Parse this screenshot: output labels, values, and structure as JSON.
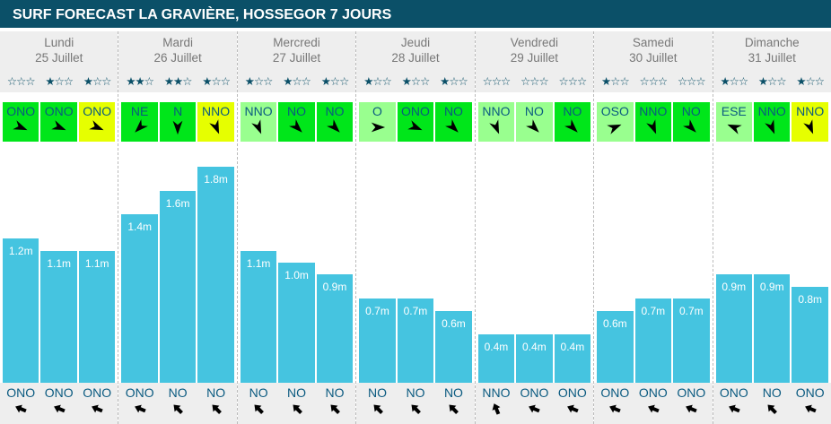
{
  "title": "SURF FORECAST LA GRAVIÈRE, HOSSEGOR 7 JOURS",
  "colors": {
    "strong": "#00e61a",
    "light": "#99ff8f",
    "yellow": "#e6ff00",
    "bar": "#45c4e0"
  },
  "days": [
    {
      "name": "Lundi",
      "date": "25 Juillet",
      "slots": [
        {
          "stars": 0,
          "wind": "ONO",
          "wind_color": "strong",
          "height": 1.2,
          "height_label": "1.2m",
          "swell": "ONO"
        },
        {
          "stars": 1,
          "wind": "ONO",
          "wind_color": "strong",
          "height": 1.1,
          "height_label": "1.1m",
          "swell": "ONO"
        },
        {
          "stars": 1,
          "wind": "ONO",
          "wind_color": "yellow",
          "height": 1.1,
          "height_label": "1.1m",
          "swell": "ONO"
        }
      ]
    },
    {
      "name": "Mardi",
      "date": "26 Juillet",
      "slots": [
        {
          "stars": 2,
          "wind": "NE",
          "wind_color": "strong",
          "height": 1.4,
          "height_label": "1.4m",
          "swell": "ONO"
        },
        {
          "stars": 2,
          "wind": "N",
          "wind_color": "strong",
          "height": 1.6,
          "height_label": "1.6m",
          "swell": "NO"
        },
        {
          "stars": 1,
          "wind": "NNO",
          "wind_color": "yellow",
          "height": 1.8,
          "height_label": "1.8m",
          "swell": "NO"
        }
      ]
    },
    {
      "name": "Mercredi",
      "date": "27 Juillet",
      "slots": [
        {
          "stars": 1,
          "wind": "NNO",
          "wind_color": "light",
          "height": 1.1,
          "height_label": "1.1m",
          "swell": "NO"
        },
        {
          "stars": 1,
          "wind": "NO",
          "wind_color": "strong",
          "height": 1.0,
          "height_label": "1.0m",
          "swell": "NO"
        },
        {
          "stars": 1,
          "wind": "NO",
          "wind_color": "strong",
          "height": 0.9,
          "height_label": "0.9m",
          "swell": "NO"
        }
      ]
    },
    {
      "name": "Jeudi",
      "date": "28 Juillet",
      "slots": [
        {
          "stars": 1,
          "wind": "O",
          "wind_color": "light",
          "height": 0.7,
          "height_label": "0.7m",
          "swell": "NO"
        },
        {
          "stars": 1,
          "wind": "ONO",
          "wind_color": "strong",
          "height": 0.7,
          "height_label": "0.7m",
          "swell": "NO"
        },
        {
          "stars": 1,
          "wind": "NO",
          "wind_color": "strong",
          "height": 0.6,
          "height_label": "0.6m",
          "swell": "NO"
        }
      ]
    },
    {
      "name": "Vendredi",
      "date": "29 Juillet",
      "slots": [
        {
          "stars": 0,
          "wind": "NNO",
          "wind_color": "light",
          "height": 0.4,
          "height_label": "0.4m",
          "swell": "NNO"
        },
        {
          "stars": 0,
          "wind": "NO",
          "wind_color": "light",
          "height": 0.4,
          "height_label": "0.4m",
          "swell": "ONO"
        },
        {
          "stars": 0,
          "wind": "NO",
          "wind_color": "strong",
          "height": 0.4,
          "height_label": "0.4m",
          "swell": "ONO"
        }
      ]
    },
    {
      "name": "Samedi",
      "date": "30 Juillet",
      "slots": [
        {
          "stars": 1,
          "wind": "OSO",
          "wind_color": "light",
          "height": 0.6,
          "height_label": "0.6m",
          "swell": "ONO"
        },
        {
          "stars": 0,
          "wind": "NNO",
          "wind_color": "strong",
          "height": 0.7,
          "height_label": "0.7m",
          "swell": "ONO"
        },
        {
          "stars": 0,
          "wind": "NO",
          "wind_color": "strong",
          "height": 0.7,
          "height_label": "0.7m",
          "swell": "ONO"
        }
      ]
    },
    {
      "name": "Dimanche",
      "date": "31 Juillet",
      "slots": [
        {
          "stars": 1,
          "wind": "ESE",
          "wind_color": "light",
          "height": 0.9,
          "height_label": "0.9m",
          "swell": "ONO"
        },
        {
          "stars": 1,
          "wind": "NNO",
          "wind_color": "strong",
          "height": 0.9,
          "height_label": "0.9m",
          "swell": "NO"
        },
        {
          "stars": 1,
          "wind": "NNO",
          "wind_color": "yellow",
          "height": 0.8,
          "height_label": "0.8m",
          "swell": "ONO"
        }
      ]
    }
  ]
}
